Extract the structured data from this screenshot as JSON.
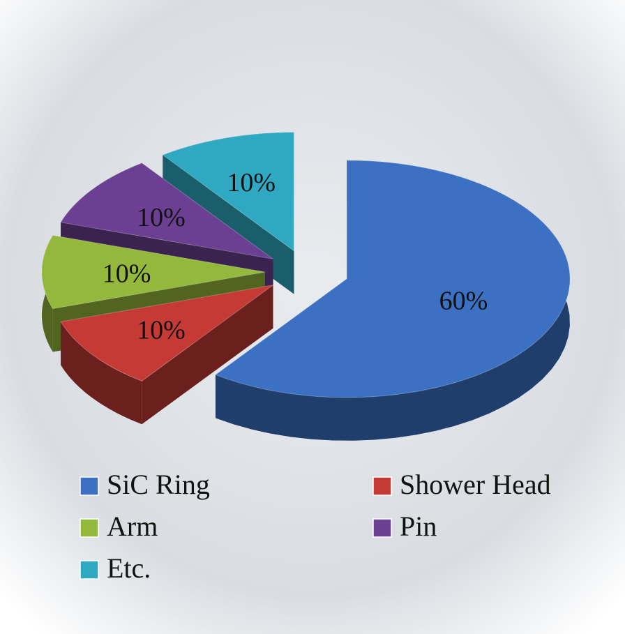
{
  "chart_data": {
    "type": "pie",
    "categories": [
      "SiC Ring",
      "Shower Head",
      "Arm",
      "Pin",
      "Etc."
    ],
    "values": [
      60,
      10,
      10,
      10,
      10
    ],
    "value_labels": [
      "60%",
      "10%",
      "10%",
      "10%",
      "10%"
    ],
    "colors": [
      "#3b70c2",
      "#c53a35",
      "#93b83c",
      "#6b3f92",
      "#2fa9c2"
    ],
    "legend": "bottom"
  }
}
